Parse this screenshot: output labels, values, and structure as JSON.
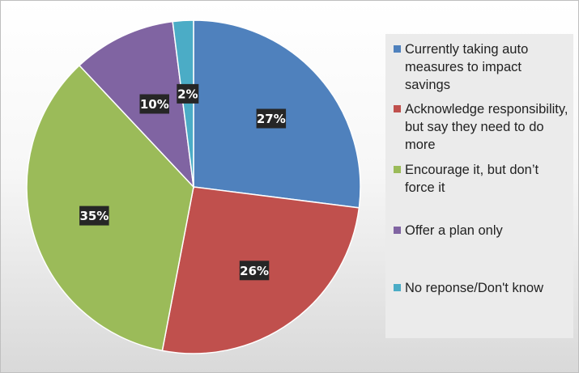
{
  "chart_data": {
    "type": "pie",
    "start_angle_deg": 0,
    "direction": "clockwise",
    "legend_position": "right",
    "slices": [
      {
        "label": "Currently taking auto measures to impact savings",
        "value": 27,
        "display": "27%",
        "color": "#4f81bd"
      },
      {
        "label": "Acknowledge responsibility, but say they need to do more",
        "value": 26,
        "display": "26%",
        "color": "#c0504d"
      },
      {
        "label": "Encourage it, but don’t force it",
        "value": 35,
        "display": "35%",
        "color": "#9bbb59"
      },
      {
        "label": "Offer a plan only",
        "value": 10,
        "display": "10%",
        "color": "#8064a2"
      },
      {
        "label": "No reponse/Don't know",
        "value": 2,
        "display": "2%",
        "color": "#4bacc6"
      }
    ]
  }
}
